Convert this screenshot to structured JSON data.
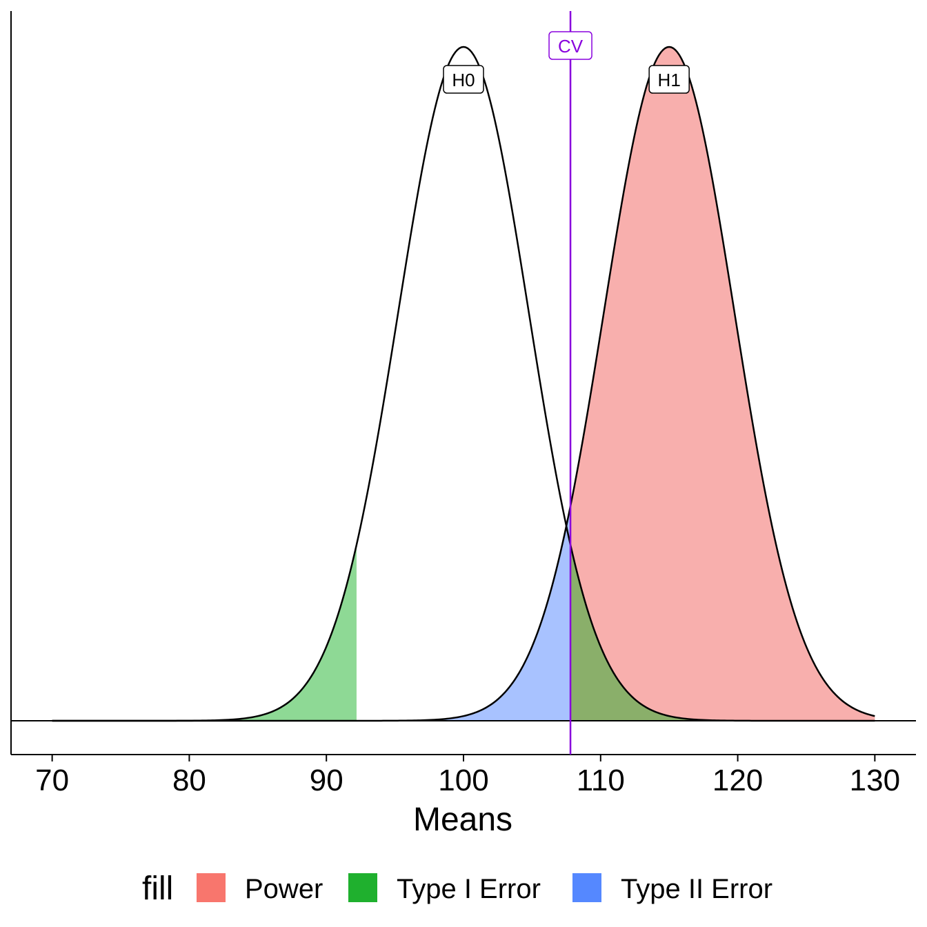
{
  "chart_data": {
    "type": "area",
    "xlabel": "Means",
    "ylabel": "",
    "xlim": [
      67,
      133
    ],
    "x_ticks": [
      "70",
      "80",
      "90",
      "100",
      "110",
      "120",
      "130"
    ],
    "x_tick_values": [
      70,
      80,
      90,
      100,
      110,
      120,
      130
    ],
    "distributions": [
      {
        "label": "H0",
        "mean": 100,
        "sd": 4.76,
        "x_range": [
          70,
          130
        ]
      },
      {
        "label": "H1",
        "mean": 115,
        "sd": 4.76,
        "x_range": [
          70,
          130
        ]
      }
    ],
    "critical_value": {
      "label": "CV",
      "x": 107.8
    },
    "regions": [
      {
        "fill": "Power",
        "curve": "H1",
        "from": 107.8,
        "to": 130
      },
      {
        "fill": "Type I Error",
        "curve": "H0",
        "from": 70,
        "to": 92.2
      },
      {
        "fill": "Type I Error",
        "curve": "H0",
        "from": 107.8,
        "to": 130
      },
      {
        "fill": "Type II Error",
        "curve": "H1",
        "from": 70,
        "to": 107.8
      }
    ],
    "legend": {
      "title": "fill",
      "position": "bottom",
      "items": [
        {
          "name": "Power",
          "color": "#F8766D"
        },
        {
          "name": "Type I Error",
          "color": "#1FB02E"
        },
        {
          "name": "Type II Error",
          "color": "#5588FF"
        }
      ]
    },
    "colors": {
      "power_fill": "#F8AFAD",
      "type1_fill": "#8ED995",
      "type2_fill": "#A8C2FF",
      "overlap_fill": "#8AAF6A",
      "cv_line": "#8800DD"
    },
    "grid": false
  }
}
